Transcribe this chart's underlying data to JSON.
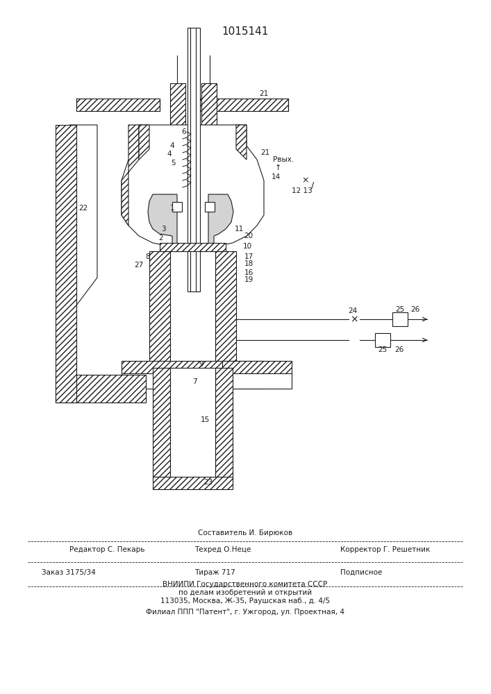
{
  "patent_number": "1015141",
  "background_color": "#ffffff",
  "line_color": "#1a1a1a",
  "hatch_color": "#1a1a1a",
  "title_fontsize": 11,
  "label_fontsize": 7.5,
  "footer_lines": [
    {
      "left": "",
      "center": "Составитель И. Бирюков",
      "right": ""
    },
    {
      "left": "Редактор С. Пекарь",
      "center": "Техред О.Неце",
      "right": "Корректор Г. Решетник"
    },
    {
      "left": "Заказ 3175/34",
      "center": "Тираж 717",
      "right": "Подписное"
    },
    {
      "left": "",
      "center": "ВНИИПИ Государственного комитета СССР",
      "right": ""
    },
    {
      "left": "",
      "center": "по делам изобретений и открытий",
      "right": ""
    },
    {
      "left": "",
      "center": "113035, Москва, Ж-35, Раушская наб., д. 4/5",
      "right": ""
    },
    {
      "left": "",
      "center": "Филиал ППП \"Патент\", г. Ужгород, ул. Проектная, 4",
      "right": ""
    }
  ]
}
